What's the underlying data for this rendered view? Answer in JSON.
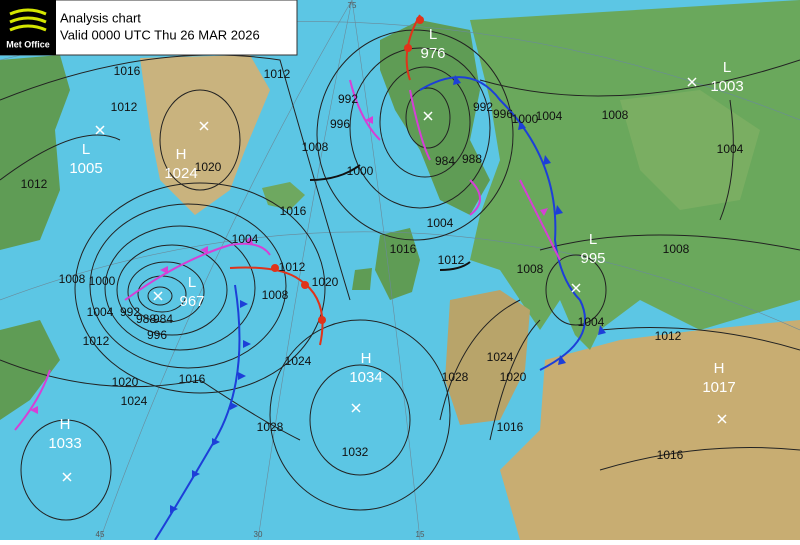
{
  "header": {
    "logo": "Met Office",
    "title": "Analysis chart",
    "valid": "Valid 0000 UTC Thu 26 MAR 2026"
  },
  "pressure_centres": [
    {
      "type": "L",
      "value": 1005
    },
    {
      "type": "H",
      "value": 1024
    },
    {
      "type": "L",
      "value": 967
    },
    {
      "type": "L",
      "value": 976
    },
    {
      "type": "L",
      "value": 1003
    },
    {
      "type": "L",
      "value": 995
    },
    {
      "type": "H",
      "value": 1034
    },
    {
      "type": "H",
      "value": 1017
    },
    {
      "type": "H",
      "value": 1033
    }
  ],
  "isobar_labels": [
    1016,
    1012,
    1012,
    1008,
    1000,
    1004,
    1012,
    1020,
    1024,
    1016,
    1028,
    1032,
    1012,
    1008,
    1000,
    996,
    992,
    1020,
    1016,
    1004,
    1012,
    1008,
    1020,
    1024,
    984,
    988,
    992,
    996,
    1000,
    1004,
    1008,
    1004,
    1016,
    1012,
    1008,
    1028,
    1024,
    1020,
    1016,
    1004,
    1012,
    1008,
    1004,
    1016,
    992,
    988,
    984,
    996
  ],
  "graticule_labels": [
    "75",
    "45",
    "30",
    "15"
  ]
}
